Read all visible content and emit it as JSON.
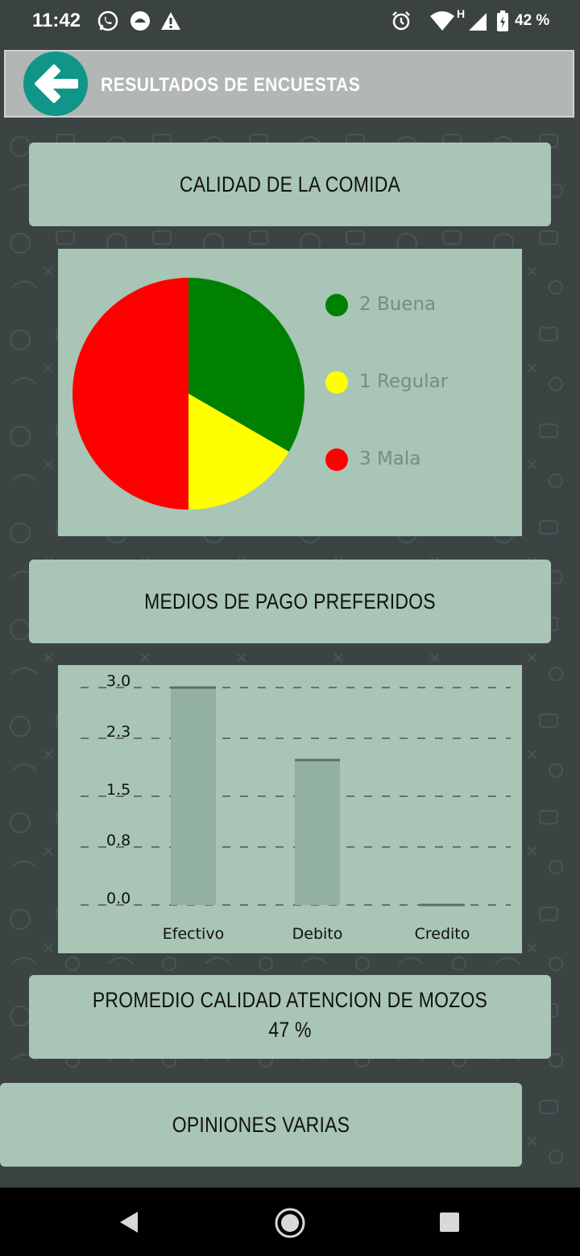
{
  "status_bar": {
    "time": "11:42",
    "battery": "42 %",
    "icons": [
      "whatsapp-icon",
      "app-notification-icon",
      "warning-icon",
      "alarm-icon",
      "wifi-icon",
      "signal-h-icon",
      "battery-icon"
    ]
  },
  "app_bar": {
    "title": "RESULTADOS DE ENCUESTAS",
    "back_icon": "arrow-left-icon",
    "accent": "#0f9688"
  },
  "sections": {
    "food_quality": "CALIDAD DE LA COMIDA",
    "payment_methods": "MEDIOS DE PAGO PREFERIDOS",
    "waiter_quality": "PROMEDIO CALIDAD ATENCION DE MOZOS",
    "waiter_quality_value": "47 %",
    "opinions": "OPINIONES VARIAS"
  },
  "chart_data": [
    {
      "type": "pie",
      "slices": [
        {
          "label": "2 Buena",
          "value": 2,
          "color": "#008000"
        },
        {
          "label": "1 Regular",
          "value": 1,
          "color": "#ffff00"
        },
        {
          "label": "3 Mala",
          "value": 3,
          "color": "#ff0000"
        }
      ],
      "legend_position": "right"
    },
    {
      "type": "bar",
      "categories": [
        "Efectivo",
        "Debito",
        "Credito"
      ],
      "values": [
        3,
        2,
        0
      ],
      "y_ticks": [
        "0.0",
        "0.8",
        "1.5",
        "2.3",
        "3.0"
      ],
      "ylim": [
        0,
        3
      ],
      "grid": true,
      "bar_color": "#93b1a2"
    }
  ]
}
